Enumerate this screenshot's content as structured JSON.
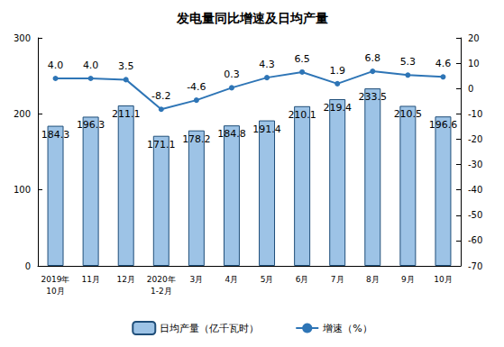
{
  "chart_data": {
    "type": "bar",
    "title": "发电量同比增速及日均产量",
    "categories": [
      "2019年\n10月",
      "11月",
      "12月",
      "2020年\n1-2月",
      "3月",
      "4月",
      "5月",
      "6月",
      "7月",
      "8月",
      "9月",
      "10月"
    ],
    "series": [
      {
        "name": "日均产量（亿千瓦时）",
        "type": "bar",
        "color": "#9dc3e6",
        "values": [
          184.3,
          196.3,
          211.1,
          171.1,
          178.2,
          184.8,
          191.4,
          210.1,
          219.4,
          233.5,
          210.5,
          196.6
        ]
      },
      {
        "name": "增速（%）",
        "type": "line",
        "axis": "y2",
        "color": "#2e75b6",
        "marker": "circle",
        "values": [
          4.0,
          4.0,
          3.5,
          -8.2,
          -4.6,
          0.3,
          4.3,
          6.5,
          1.9,
          6.8,
          5.3,
          4.6
        ],
        "value_labels": [
          "4.0",
          "4.0",
          "3.5",
          "-8.2",
          "-4.6",
          "0.3",
          "4.3",
          "6.5",
          "1.9",
          "6.8",
          "5.3",
          "4.6"
        ]
      }
    ],
    "ylim": [
      0,
      300
    ],
    "yticks": [
      0,
      100,
      200,
      300
    ],
    "y2lim": [
      -70,
      20
    ],
    "y2ticks": [
      -70,
      -60,
      -50,
      -40,
      -30,
      -20,
      -10,
      0,
      10,
      20
    ],
    "grid": false,
    "legend": "bottom",
    "data_labels": true
  }
}
